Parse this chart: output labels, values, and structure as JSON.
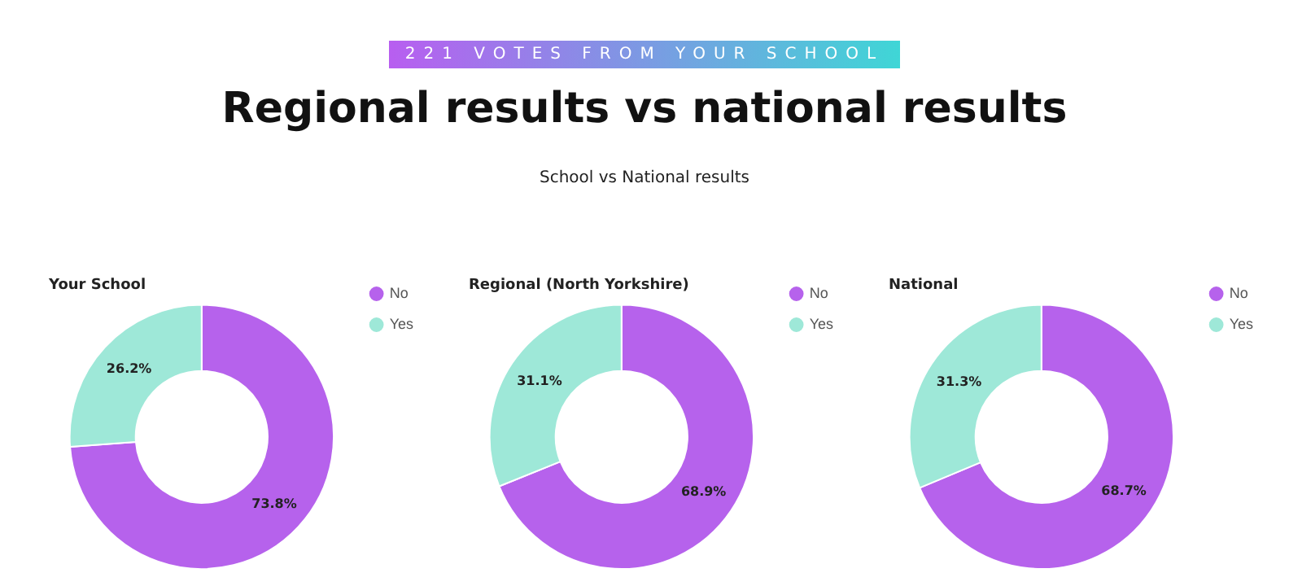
{
  "chart_data": [
    {
      "type": "other",
      "title": "Regional results vs national results",
      "subtitle": "School vs National results",
      "annotations": [
        "221 VOTES FROM YOUR SCHOOL"
      ]
    },
    {
      "type": "donut",
      "title": "Your School",
      "categories": [
        "No",
        "Yes"
      ],
      "values": [
        73.8,
        26.2
      ],
      "colors": [
        "#b662ec",
        "#9ee8d8"
      ],
      "value_labels": [
        "73.8%",
        "26.2%"
      ],
      "legend": "top right"
    },
    {
      "type": "donut",
      "title": "Regional (North Yorkshire)",
      "categories": [
        "No",
        "Yes"
      ],
      "values": [
        68.9,
        31.1
      ],
      "colors": [
        "#b662ec",
        "#9ee8d8"
      ],
      "value_labels": [
        "68.9%",
        "31.1%"
      ],
      "legend": "top right"
    },
    {
      "type": "donut",
      "title": "National",
      "categories": [
        "No",
        "Yes"
      ],
      "values": [
        68.7,
        31.3
      ],
      "colors": [
        "#b662ec",
        "#9ee8d8"
      ],
      "value_labels": [
        "68.7%",
        "31.3%"
      ],
      "legend": "top right"
    }
  ]
}
